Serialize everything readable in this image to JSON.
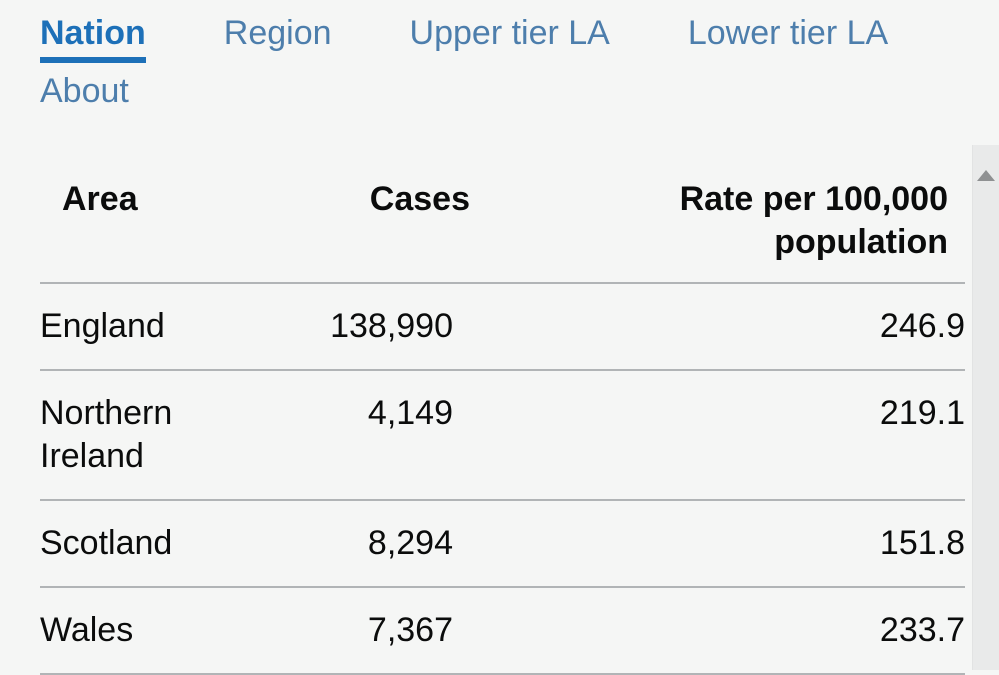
{
  "tabs": {
    "items": [
      {
        "label": "Nation",
        "active": true
      },
      {
        "label": "Region",
        "active": false
      },
      {
        "label": "Upper tier LA",
        "active": false
      },
      {
        "label": "Lower tier LA",
        "active": false
      },
      {
        "label": "About",
        "active": false
      }
    ]
  },
  "table": {
    "headers": {
      "area": "Area",
      "cases": "Cases",
      "rate": "Rate per 100,000 population"
    },
    "rows": [
      {
        "area": "England",
        "cases": "138,990",
        "rate": "246.9"
      },
      {
        "area": "Northern Ireland",
        "cases": "4,149",
        "rate": "219.1"
      },
      {
        "area": "Scotland",
        "cases": "8,294",
        "rate": "151.8"
      },
      {
        "area": "Wales",
        "cases": "7,367",
        "rate": "233.7"
      }
    ]
  },
  "scrollbar": {
    "up_icon": "scroll-up-arrow"
  },
  "colors": {
    "accent_blue": "#1d70b8",
    "inactive_tab_blue": "#4d7eac",
    "text": "#0b0c0c",
    "divider": "#b1b4b6",
    "background": "#f5f6f5",
    "scroll_track": "#e9eaea"
  }
}
